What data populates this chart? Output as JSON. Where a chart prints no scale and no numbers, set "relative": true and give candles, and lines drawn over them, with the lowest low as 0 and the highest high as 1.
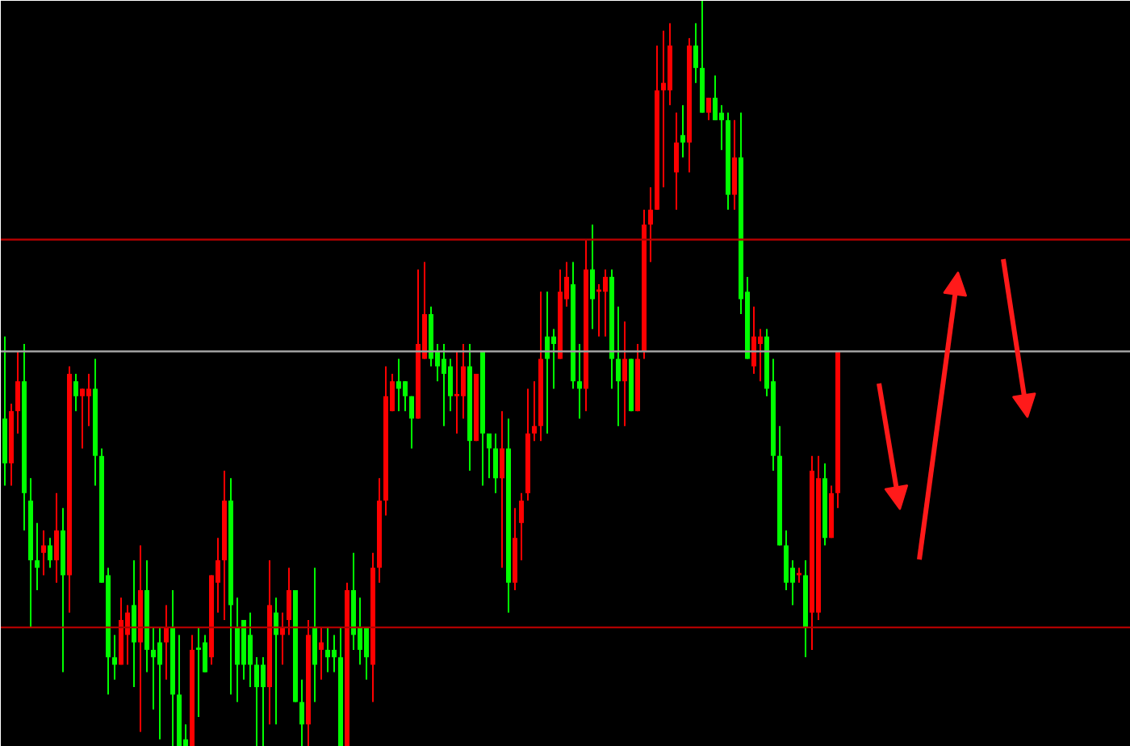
{
  "chart_data": {
    "type": "candlestick",
    "relative": true,
    "categories": [
      null,
      null,
      null,
      null,
      null,
      null,
      null,
      null,
      null,
      null,
      null,
      null,
      null,
      null,
      null,
      null,
      null,
      null,
      null,
      null,
      null,
      null,
      null,
      null,
      null,
      null,
      null,
      null,
      null,
      null,
      null,
      null,
      null,
      null,
      null,
      null,
      null,
      null,
      null,
      null,
      null,
      null,
      null,
      null,
      null,
      null,
      null,
      null,
      null,
      null,
      null,
      null,
      null,
      null,
      null,
      null,
      null,
      null,
      null,
      null,
      null,
      null,
      null,
      null,
      null,
      null,
      null,
      null,
      null,
      null,
      null,
      null,
      null,
      null,
      null,
      null,
      null,
      null,
      null,
      null,
      null,
      null,
      null,
      null,
      null,
      null,
      null,
      null,
      null,
      null,
      null,
      null,
      null,
      null,
      null,
      null,
      null,
      null,
      null,
      null,
      null,
      null,
      null,
      null,
      null,
      null,
      null,
      null,
      null,
      null,
      null,
      null,
      null,
      null,
      null,
      null,
      null,
      null,
      null,
      null,
      null,
      null,
      null,
      null,
      null,
      null,
      null,
      null,
      null,
      null
    ],
    "ohlc": [
      [
        0.44,
        0.55,
        0.35,
        0.38
      ],
      [
        0.38,
        0.46,
        0.35,
        0.45
      ],
      [
        0.45,
        0.53,
        0.42,
        0.49
      ],
      [
        0.49,
        0.54,
        0.29,
        0.34
      ],
      [
        0.33,
        0.36,
        0.16,
        0.25
      ],
      [
        0.25,
        0.3,
        0.21,
        0.24
      ],
      [
        0.26,
        0.29,
        0.23,
        0.27
      ],
      [
        0.27,
        0.28,
        0.24,
        0.25
      ],
      [
        0.25,
        0.34,
        0.22,
        0.29
      ],
      [
        0.29,
        0.32,
        0.1,
        0.23
      ],
      [
        0.23,
        0.51,
        0.18,
        0.5
      ],
      [
        0.49,
        0.5,
        0.45,
        0.47
      ],
      [
        0.47,
        0.48,
        0.4,
        0.48
      ],
      [
        0.47,
        0.5,
        0.43,
        0.48
      ],
      [
        0.48,
        0.52,
        0.35,
        0.39
      ],
      [
        0.39,
        0.4,
        0.22,
        0.22
      ],
      [
        0.23,
        0.24,
        0.07,
        0.12
      ],
      [
        0.12,
        0.15,
        0.09,
        0.11
      ],
      [
        0.11,
        0.2,
        0.11,
        0.17
      ],
      [
        0.15,
        0.19,
        0.11,
        0.18
      ],
      [
        0.19,
        0.25,
        0.08,
        0.14
      ],
      [
        0.14,
        0.27,
        0.02,
        0.21
      ],
      [
        0.21,
        0.25,
        0.1,
        0.13
      ],
      [
        0.13,
        0.16,
        0.05,
        0.12
      ],
      [
        0.14,
        0.16,
        0.01,
        0.11
      ],
      [
        0.14,
        0.19,
        0.09,
        0.16
      ],
      [
        0.16,
        0.21,
        0.0,
        0.07
      ],
      [
        0.07,
        0.15,
        0,
        0
      ],
      [
        0.01,
        0.03,
        0,
        0
      ],
      [
        0,
        0.15,
        0,
        0.13
      ],
      [
        0.13,
        0.16,
        0.04,
        0.13
      ],
      [
        0.14,
        0.15,
        0.1,
        0.1
      ],
      [
        0.12,
        0.23,
        0.11,
        0.23
      ],
      [
        0.22,
        0.28,
        0.18,
        0.25
      ],
      [
        0.25,
        0.37,
        0.17,
        0.33
      ],
      [
        0.33,
        0.36,
        0.07,
        0.19
      ],
      [
        0.16,
        0.2,
        0.06,
        0.11
      ],
      [
        0.17,
        0.17,
        0.09,
        0.11
      ],
      [
        0.15,
        0.18,
        0.08,
        0.11
      ],
      [
        0.11,
        0.12,
        0,
        0.08
      ],
      [
        0.11,
        0.12,
        0,
        0.08
      ],
      [
        0.08,
        0.25,
        0.03,
        0.19
      ],
      [
        0.18,
        0.2,
        0.03,
        0.15
      ],
      [
        0.15,
        0.18,
        0.11,
        0.16
      ],
      [
        0.17,
        0.24,
        0.15,
        0.21
      ],
      [
        0.21,
        0.21,
        0.06,
        0.06
      ],
      [
        0.06,
        0.09,
        0,
        0.03
      ],
      [
        0.03,
        0.17,
        0,
        0.15
      ],
      [
        0.16,
        0.24,
        0.06,
        0.11
      ],
      [
        0.13,
        0.16,
        0.09,
        0.14
      ],
      [
        0.13,
        0.16,
        0.1,
        0.12
      ],
      [
        0.13,
        0.15,
        0.1,
        0.12
      ],
      [
        0.12,
        0.16,
        0,
        0
      ],
      [
        0,
        0.22,
        0,
        0.21
      ],
      [
        0.21,
        0.26,
        0.13,
        0.15
      ],
      [
        0.16,
        0.2,
        0.11,
        0.13
      ],
      [
        0.16,
        0.16,
        0.09,
        0.12
      ],
      [
        0.11,
        0.26,
        0.06,
        0.24
      ],
      [
        0.24,
        0.36,
        0.22,
        0.33
      ],
      [
        0.33,
        0.51,
        0.31,
        0.47
      ],
      [
        0.45,
        0.5,
        0.45,
        0.49
      ],
      [
        0.49,
        0.52,
        0.45,
        0.48
      ],
      [
        0.49,
        0.49,
        0.45,
        0.47
      ],
      [
        0.47,
        0.47,
        0.4,
        0.44
      ],
      [
        0.44,
        0.64,
        0.44,
        0.54
      ],
      [
        0.52,
        0.65,
        0.52,
        0.58
      ],
      [
        0.58,
        0.59,
        0.51,
        0.52
      ],
      [
        0.53,
        0.54,
        0.49,
        0.51
      ],
      [
        0.52,
        0.54,
        0.43,
        0.5
      ],
      [
        0.51,
        0.52,
        0.45,
        0.47
      ],
      [
        0.47,
        0.53,
        0.42,
        0.47
      ],
      [
        0.47,
        0.54,
        0.44,
        0.51
      ],
      [
        0.51,
        0.54,
        0.37,
        0.41
      ],
      [
        0.41,
        0.5,
        0.41,
        0.5
      ],
      [
        0.53,
        0.53,
        0.35,
        0.42
      ],
      [
        0.42,
        0.42,
        0.36,
        0.4
      ],
      [
        0.4,
        0.42,
        0.34,
        0.36
      ],
      [
        0.36,
        0.45,
        0.24,
        0.4
      ],
      [
        0.4,
        0.44,
        0.18,
        0.22
      ],
      [
        0.22,
        0.32,
        0.21,
        0.28
      ],
      [
        0.3,
        0.34,
        0.25,
        0.33
      ],
      [
        0.34,
        0.48,
        0.33,
        0.42
      ],
      [
        0.42,
        0.49,
        0.41,
        0.43
      ],
      [
        0.43,
        0.61,
        0.41,
        0.52
      ],
      [
        0.55,
        0.61,
        0.42,
        0.52
      ],
      [
        0.55,
        0.56,
        0.48,
        0.54
      ],
      [
        0.52,
        0.64,
        0.52,
        0.61
      ],
      [
        0.6,
        0.65,
        0.59,
        0.63
      ],
      [
        0.62,
        0.65,
        0.48,
        0.49
      ],
      [
        0.49,
        0.54,
        0.44,
        0.48
      ],
      [
        0.48,
        0.68,
        0.45,
        0.64
      ],
      [
        0.64,
        0.7,
        0.56,
        0.6
      ],
      [
        0.61,
        0.62,
        0.55,
        0.61
      ],
      [
        0.61,
        0.64,
        0.55,
        0.63
      ],
      [
        0.63,
        0.64,
        0.48,
        0.52
      ],
      [
        0.52,
        0.59,
        0.43,
        0.49
      ],
      [
        0.49,
        0.57,
        0.43,
        0.52
      ],
      [
        0.52,
        0.52,
        0.45,
        0.45
      ],
      [
        0.45,
        0.54,
        0.45,
        0.52
      ],
      [
        0.53,
        0.72,
        0.52,
        0.7
      ],
      [
        0.7,
        0.75,
        0.65,
        0.72
      ],
      [
        0.72,
        0.94,
        0.72,
        0.88
      ],
      [
        0.88,
        0.96,
        0.75,
        0.89
      ],
      [
        0.88,
        0.97,
        0.86,
        0.94
      ],
      [
        0.77,
        0.85,
        0.72,
        0.81
      ],
      [
        0.82,
        0.86,
        0.79,
        0.81
      ],
      [
        0.81,
        0.95,
        0.77,
        0.94
      ],
      [
        0.94,
        0.97,
        0.89,
        0.91
      ],
      [
        0.91,
        1.0,
        0.85,
        0.85
      ],
      [
        0.85,
        0.87,
        0.84,
        0.87
      ],
      [
        0.87,
        0.9,
        0.84,
        0.84
      ],
      [
        0.85,
        0.86,
        0.8,
        0.84
      ],
      [
        0.84,
        0.85,
        0.72,
        0.74
      ],
      [
        0.74,
        0.84,
        0.72,
        0.79
      ],
      [
        0.79,
        0.85,
        0.58,
        0.6
      ],
      [
        0.61,
        0.63,
        0.52,
        0.52
      ],
      [
        0.51,
        0.59,
        0.5,
        0.55
      ],
      [
        0.54,
        0.56,
        0.49,
        0.55
      ],
      [
        0.55,
        0.56,
        0.47,
        0.48
      ],
      [
        0.49,
        0.52,
        0.37,
        0.39
      ],
      [
        0.39,
        0.43,
        0.27,
        0.27
      ],
      [
        0.27,
        0.29,
        0.21,
        0.22
      ],
      [
        0.24,
        0.25,
        0.19,
        0.22
      ],
      [
        0.23,
        0.24,
        0.22,
        0.23
      ],
      [
        0.23,
        0.25,
        0.12,
        0.16
      ],
      [
        0.18,
        0.39,
        0.13,
        0.37
      ],
      [
        0.18,
        0.39,
        0.17,
        0.36
      ],
      [
        0.36,
        0.38,
        0.27,
        0.28
      ],
      [
        0.28,
        0.35,
        0.28,
        0.34
      ],
      [
        0.34,
        0.53,
        0.32,
        0.53
      ]
    ],
    "colors": [
      "#00ff00",
      "#ff0000",
      "#ff0000",
      "#00ff00",
      "#00ff00",
      "#00ff00",
      "#ff0000",
      "#00ff00",
      "#ff0000",
      "#00ff00",
      "#ff0000",
      "#00ff00",
      "#ff0000",
      "#ff0000",
      "#00ff00",
      "#00ff00",
      "#00ff00",
      "#00ff00",
      "#ff0000",
      "#ff0000",
      "#00ff00",
      "#ff0000",
      "#00ff00",
      "#00ff00",
      "#00ff00",
      "#ff0000",
      "#00ff00",
      "#00ff00",
      "#00ff00",
      "#ff0000",
      "#00ff00",
      "#00ff00",
      "#ff0000",
      "#ff0000",
      "#ff0000",
      "#00ff00",
      "#00ff00",
      "#00ff00",
      "#00ff00",
      "#00ff00",
      "#00ff00",
      "#ff0000",
      "#00ff00",
      "#ff0000",
      "#ff0000",
      "#00ff00",
      "#00ff00",
      "#ff0000",
      "#00ff00",
      "#ff0000",
      "#00ff00",
      "#00ff00",
      "#00ff00",
      "#ff0000",
      "#00ff00",
      "#00ff00",
      "#00ff00",
      "#ff0000",
      "#ff0000",
      "#ff0000",
      "#ff0000",
      "#00ff00",
      "#00ff00",
      "#00ff00",
      "#ff0000",
      "#ff0000",
      "#00ff00",
      "#00ff00",
      "#00ff00",
      "#00ff00",
      "#ff0000",
      "#ff0000",
      "#00ff00",
      "#ff0000",
      "#00ff00",
      "#00ff00",
      "#00ff00",
      "#ff0000",
      "#00ff00",
      "#ff0000",
      "#ff0000",
      "#ff0000",
      "#ff0000",
      "#ff0000",
      "#00ff00",
      "#00ff00",
      "#ff0000",
      "#ff0000",
      "#00ff00",
      "#00ff00",
      "#ff0000",
      "#00ff00",
      "#ff0000",
      "#ff0000",
      "#00ff00",
      "#00ff00",
      "#ff0000",
      "#00ff00",
      "#ff0000",
      "#ff0000",
      "#ff0000",
      "#ff0000",
      "#ff0000",
      "#ff0000",
      "#ff0000",
      "#00ff00",
      "#ff0000",
      "#00ff00",
      "#00ff00",
      "#ff0000",
      "#00ff00",
      "#00ff00",
      "#00ff00",
      "#ff0000",
      "#00ff00",
      "#00ff00",
      "#ff0000",
      "#ff0000",
      "#00ff00",
      "#00ff00",
      "#00ff00",
      "#00ff00",
      "#00ff00",
      "#ff0000",
      "#00ff00",
      "#ff0000",
      "#ff0000",
      "#00ff00",
      "#ff0000",
      "#ff0000"
    ],
    "ref_lines": [
      {
        "axis": "y",
        "value": 0.68,
        "color": "#b00000"
      },
      {
        "axis": "y",
        "value": 0.53,
        "color": "#a0a0a0"
      },
      {
        "axis": "y",
        "value": 0.16,
        "color": "#b00000"
      }
    ]
  }
}
